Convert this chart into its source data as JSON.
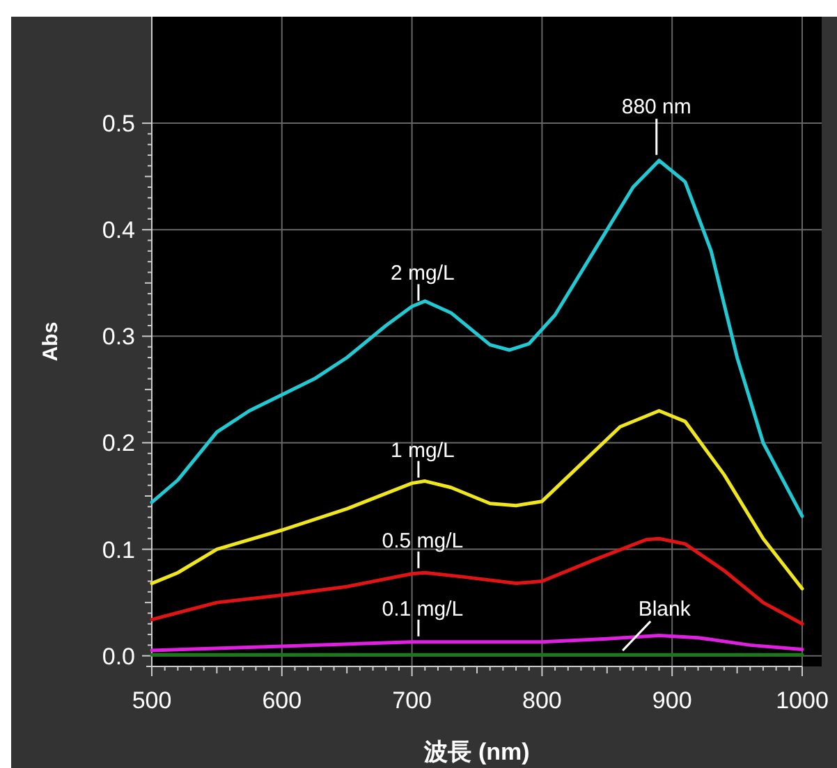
{
  "chart_data": {
    "type": "line",
    "xlabel": "波長 (nm)",
    "ylabel": "Abs",
    "xlim": [
      500,
      1000
    ],
    "ylim": [
      -0.01,
      0.6
    ],
    "xticks": [
      500,
      600,
      700,
      800,
      900,
      1000
    ],
    "yticks": [
      {
        "value": 0,
        "label": "0.0"
      },
      0.1,
      0.2,
      0.3,
      0.4,
      0.5
    ],
    "grid": true,
    "annotations": [
      {
        "text": "880 nm",
        "x": 888,
        "y": 0.465
      }
    ],
    "series": [
      {
        "name": "2 mg/L",
        "color": "#22c8d2",
        "x": [
          500,
          520,
          550,
          575,
          600,
          625,
          650,
          680,
          700,
          710,
          730,
          760,
          775,
          790,
          810,
          840,
          870,
          890,
          910,
          930,
          950,
          970,
          1000
        ],
        "values": [
          0.144,
          0.165,
          0.21,
          0.23,
          0.245,
          0.26,
          0.28,
          0.31,
          0.328,
          0.333,
          0.322,
          0.292,
          0.287,
          0.293,
          0.32,
          0.38,
          0.44,
          0.465,
          0.445,
          0.38,
          0.28,
          0.2,
          0.131
        ]
      },
      {
        "name": "1 mg/L",
        "color": "#f0e61e",
        "x": [
          500,
          520,
          550,
          600,
          650,
          700,
          710,
          730,
          760,
          780,
          800,
          830,
          860,
          890,
          910,
          940,
          970,
          1000
        ],
        "values": [
          0.068,
          0.078,
          0.1,
          0.118,
          0.138,
          0.162,
          0.164,
          0.158,
          0.143,
          0.141,
          0.145,
          0.18,
          0.215,
          0.23,
          0.22,
          0.17,
          0.11,
          0.063
        ]
      },
      {
        "name": "0.5 mg/L",
        "color": "#e01414",
        "x": [
          500,
          550,
          600,
          650,
          700,
          710,
          740,
          780,
          800,
          840,
          880,
          890,
          910,
          940,
          970,
          1000
        ],
        "values": [
          0.034,
          0.05,
          0.057,
          0.065,
          0.077,
          0.078,
          0.074,
          0.068,
          0.07,
          0.09,
          0.109,
          0.11,
          0.105,
          0.08,
          0.05,
          0.03
        ]
      },
      {
        "name": "0.1 mg/L",
        "color": "#e020e0",
        "x": [
          500,
          600,
          700,
          800,
          850,
          890,
          920,
          960,
          1000
        ],
        "values": [
          0.005,
          0.009,
          0.013,
          0.013,
          0.016,
          0.019,
          0.017,
          0.01,
          0.006
        ]
      },
      {
        "name": "Blank",
        "color": "#1a7a1a",
        "x": [
          500,
          600,
          700,
          800,
          900,
          1000
        ],
        "values": [
          0.001,
          0.001,
          0.001,
          0.001,
          0.001,
          0.001
        ]
      }
    ]
  }
}
